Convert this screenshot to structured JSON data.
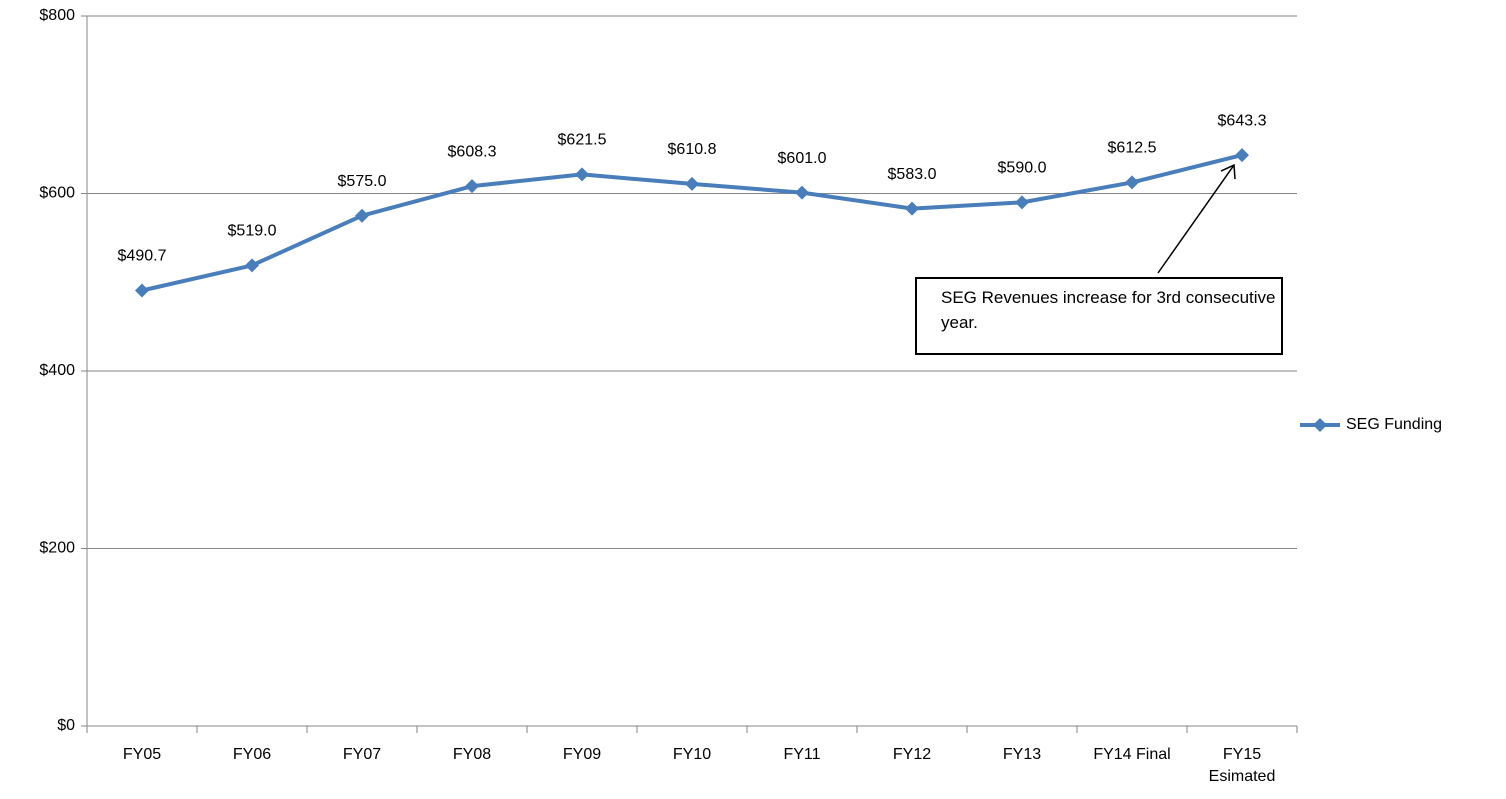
{
  "chart_data": {
    "type": "line",
    "categories": [
      "FY05",
      "FY06",
      "FY07",
      "FY08",
      "FY09",
      "FY10",
      "FY11",
      "FY12",
      "FY13",
      "FY14 Final",
      "FY15 Esimated"
    ],
    "series": [
      {
        "name": "SEG Funding",
        "color": "#4a7ebb",
        "values": [
          490.7,
          519.0,
          575.0,
          608.3,
          621.5,
          610.8,
          601.0,
          583.0,
          590.0,
          612.5,
          643.3
        ],
        "value_labels": [
          "$490.7",
          "$519.0",
          "$575.0",
          "$608.3",
          "$621.5",
          "$610.8",
          "$601.0",
          "$583.0",
          "$590.0",
          "$612.5",
          "$643.3"
        ]
      }
    ],
    "ylim": [
      0,
      800
    ],
    "yticks": [
      {
        "value": 0,
        "label": "$0"
      },
      {
        "value": 200,
        "label": "$200"
      },
      {
        "value": 400,
        "label": "$400"
      },
      {
        "value": 600,
        "label": "$600"
      },
      {
        "value": 800,
        "label": "$800"
      }
    ],
    "grid": true,
    "legend": "right",
    "annotation": "SEG Revenues increase for 3rd consecutive year."
  }
}
